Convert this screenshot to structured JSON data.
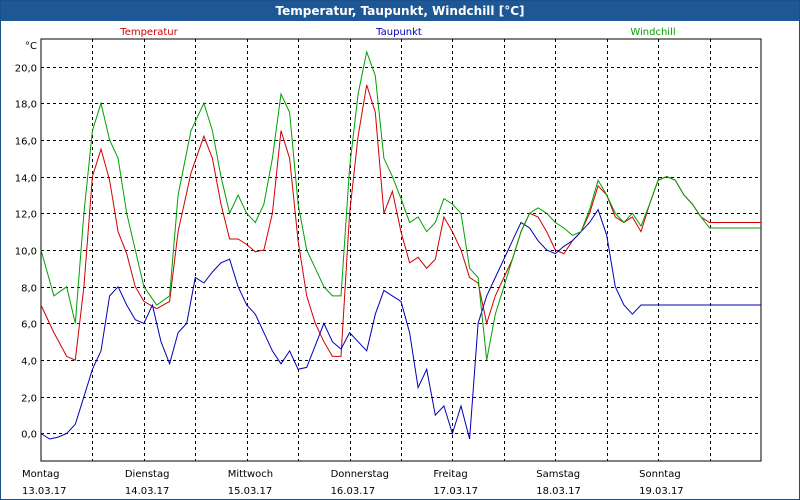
{
  "window": {
    "title": "Temperatur, Taupunkt, Windchill [°C]"
  },
  "chart_data": {
    "type": "line",
    "title": "Temperatur, Taupunkt, Windchill [°C]",
    "ylabel": "°C",
    "ylim": [
      -1.5,
      21.5
    ],
    "yticks": [
      0,
      2,
      4,
      6,
      8,
      10,
      12,
      14,
      16,
      18,
      20
    ],
    "ytick_labels": [
      "0,0",
      "2,0",
      "4,0",
      "6,0",
      "8,0",
      "10,0",
      "12,0",
      "14,0",
      "16,0",
      "18,0",
      "20,0"
    ],
    "xlim": [
      0,
      168
    ],
    "grid": true,
    "days": [
      {
        "name": "Montag",
        "date": "13.03.17",
        "start": 0
      },
      {
        "name": "Dienstag",
        "date": "14.03.17",
        "start": 24
      },
      {
        "name": "Mittwoch",
        "date": "15.03.17",
        "start": 48
      },
      {
        "name": "Donnerstag",
        "date": "16.03.17",
        "start": 72
      },
      {
        "name": "Freitag",
        "date": "17.03.17",
        "start": 96
      },
      {
        "name": "Samstag",
        "date": "18.03.17",
        "start": 120
      },
      {
        "name": "Sonntag",
        "date": "19.03.17",
        "start": 144
      }
    ],
    "series": [
      {
        "name": "Temperatur",
        "color": "#d00000",
        "x": [
          0,
          3,
          6,
          8,
          10,
          12,
          14,
          16,
          18,
          20,
          22,
          24,
          27,
          30,
          32,
          35,
          38,
          40,
          42,
          44,
          46,
          48,
          50,
          52,
          54,
          56,
          58,
          60,
          62,
          64,
          66,
          68,
          70,
          72,
          74,
          76,
          78,
          80,
          82,
          84,
          86,
          88,
          90,
          92,
          94,
          96,
          98,
          100,
          102,
          104,
          106,
          108,
          110,
          112,
          114,
          116,
          118,
          120,
          122,
          124,
          126,
          128,
          130,
          132,
          134,
          136,
          138,
          140,
          142,
          144,
          146,
          148,
          150,
          152,
          154,
          156,
          158,
          160,
          162,
          164,
          166,
          168
        ],
        "y": [
          7.0,
          5.5,
          4.2,
          4.0,
          8.0,
          14.0,
          15.5,
          13.8,
          11.0,
          9.8,
          8.0,
          7.2,
          6.8,
          7.2,
          11.0,
          14.2,
          16.2,
          15.0,
          12.5,
          10.6,
          10.6,
          10.3,
          9.9,
          10.0,
          12.0,
          16.5,
          15.0,
          10.5,
          7.5,
          6.0,
          5.0,
          4.2,
          4.2,
          12.0,
          16.2,
          19.0,
          17.5,
          12.0,
          13.2,
          11.0,
          9.3,
          9.6,
          9.0,
          9.5,
          11.8,
          11.0,
          10.0,
          8.5,
          8.2,
          6.0,
          7.5,
          8.5,
          9.5,
          11.0,
          12.0,
          11.8,
          11.0,
          10.0,
          9.8,
          10.5,
          11.0,
          12.0,
          13.5,
          13.0,
          11.8,
          11.5,
          11.8,
          11.0,
          12.5,
          13.8,
          14.0,
          13.8,
          13.0,
          12.5,
          11.8,
          11.5,
          11.5,
          11.5,
          11.5,
          11.5,
          11.5,
          11.5
        ]
      },
      {
        "name": "Taupunkt",
        "color": "#0000b8",
        "x": [
          0,
          2,
          4,
          6,
          8,
          10,
          12,
          14,
          16,
          18,
          20,
          22,
          24,
          26,
          28,
          30,
          32,
          34,
          36,
          38,
          40,
          42,
          44,
          46,
          48,
          50,
          52,
          54,
          56,
          58,
          60,
          62,
          64,
          66,
          68,
          70,
          72,
          74,
          76,
          78,
          80,
          82,
          84,
          86,
          88,
          90,
          92,
          94,
          96,
          98,
          100,
          102,
          104,
          106,
          108,
          110,
          112,
          114,
          116,
          118,
          120,
          122,
          124,
          126,
          128,
          130,
          132,
          134,
          136,
          138,
          140,
          142,
          144,
          146,
          148,
          150,
          152,
          154,
          156,
          158,
          160,
          162,
          164,
          166,
          168
        ],
        "y": [
          0.0,
          -0.3,
          -0.2,
          0.0,
          0.5,
          2.0,
          3.5,
          4.5,
          7.5,
          8.0,
          7.0,
          6.2,
          6.0,
          7.0,
          5.0,
          3.8,
          5.5,
          6.0,
          8.5,
          8.2,
          8.8,
          9.3,
          9.5,
          8.0,
          7.0,
          6.5,
          5.5,
          4.5,
          3.8,
          4.5,
          3.5,
          3.6,
          4.8,
          6.0,
          5.0,
          4.6,
          5.5,
          5.0,
          4.5,
          6.5,
          7.8,
          7.5,
          7.2,
          5.5,
          2.5,
          3.5,
          1.0,
          1.5,
          0.0,
          1.5,
          -0.3,
          6.0,
          7.5,
          8.5,
          9.5,
          10.5,
          11.5,
          11.2,
          10.5,
          10.0,
          9.8,
          10.2,
          10.5,
          11.0,
          11.5,
          12.2,
          10.8,
          8.0,
          7.0,
          6.5,
          7.0,
          7.0,
          7.0,
          7.0,
          7.0,
          7.0,
          7.0,
          7.0,
          7.0,
          7.0,
          7.0,
          7.0,
          7.0,
          7.0,
          7.0
        ]
      },
      {
        "name": "Windchill",
        "color": "#00a000",
        "x": [
          0,
          3,
          6,
          8,
          10,
          12,
          14,
          16,
          18,
          20,
          22,
          24,
          27,
          30,
          32,
          35,
          38,
          40,
          42,
          44,
          46,
          48,
          50,
          52,
          54,
          56,
          58,
          60,
          62,
          64,
          66,
          68,
          70,
          72,
          74,
          76,
          78,
          80,
          82,
          84,
          86,
          88,
          90,
          92,
          94,
          96,
          98,
          100,
          102,
          104,
          106,
          108,
          110,
          112,
          114,
          116,
          118,
          120,
          122,
          124,
          126,
          128,
          130,
          132,
          134,
          136,
          138,
          140,
          142,
          144,
          146,
          148,
          150,
          152,
          154,
          156,
          158,
          160,
          162,
          164,
          166,
          168
        ],
        "y": [
          10.0,
          7.5,
          8.0,
          6.0,
          12.0,
          16.5,
          18.0,
          16.0,
          15.0,
          12.0,
          10.0,
          8.0,
          7.0,
          7.5,
          13.0,
          16.5,
          18.0,
          16.5,
          14.0,
          12.0,
          13.0,
          12.0,
          11.5,
          12.5,
          15.0,
          18.5,
          17.5,
          12.5,
          10.0,
          9.0,
          8.0,
          7.5,
          7.5,
          14.5,
          18.5,
          20.8,
          19.5,
          15.0,
          14.0,
          12.8,
          11.5,
          11.8,
          11.0,
          11.5,
          12.8,
          12.5,
          12.0,
          9.0,
          8.5,
          4.0,
          6.5,
          8.0,
          9.5,
          11.0,
          12.0,
          12.3,
          12.0,
          11.5,
          11.2,
          10.8,
          11.0,
          12.2,
          13.8,
          13.0,
          12.0,
          11.5,
          12.0,
          11.3,
          12.5,
          13.8,
          14.0,
          13.8,
          13.0,
          12.5,
          11.8,
          11.2,
          11.2,
          11.2,
          11.2,
          11.2,
          11.2,
          11.2
        ]
      }
    ]
  }
}
